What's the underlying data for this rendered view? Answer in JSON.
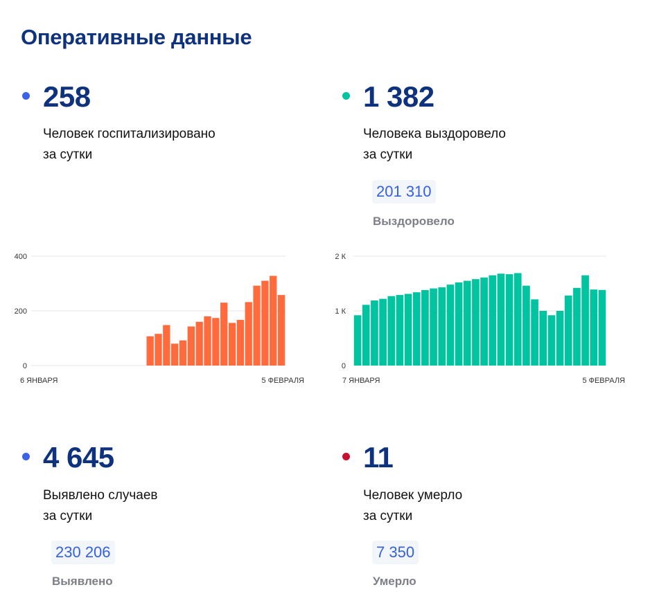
{
  "page": {
    "title": "Оперативные данные"
  },
  "stats": {
    "hospitalized": {
      "value": "258",
      "label_line1": "Человек госпитализировано",
      "label_line2": "за сутки",
      "dot_color": "#3a63e8"
    },
    "recovered": {
      "value": "1 382",
      "label_line1": "Человека выздоровело",
      "label_line2": "за сутки",
      "total_value": "201 310",
      "total_label": "Выздоровело",
      "dot_color": "#00c4a0"
    },
    "cases": {
      "value": "4 645",
      "label_line1": "Выявлено случаев",
      "label_line2": "за сутки",
      "total_value": "230 206",
      "total_label": "Выявлено",
      "dot_color": "#3a63e8"
    },
    "deaths": {
      "value": "11",
      "label_line1": "Человек умерло",
      "label_line2": "за сутки",
      "total_value": "7 350",
      "total_label": "Умерло",
      "dot_color": "#c8102e"
    }
  },
  "chart_data": [
    {
      "type": "bar",
      "color": "#ff6b3d",
      "grid": true,
      "ylim": [
        0,
        400
      ],
      "y_ticks": [
        0,
        200,
        400
      ],
      "y_tick_labels": [
        "0",
        "200",
        "400"
      ],
      "x_start_label": "6 ЯНВАРЯ",
      "x_end_label": "5 ФЕВРАЛЯ",
      "values": [
        null,
        null,
        null,
        null,
        null,
        null,
        null,
        null,
        null,
        null,
        null,
        null,
        null,
        null,
        107,
        116,
        148,
        80,
        92,
        143,
        160,
        180,
        174,
        230,
        156,
        167,
        232,
        292,
        310,
        328,
        258
      ]
    },
    {
      "type": "bar",
      "color": "#00c4a0",
      "grid": true,
      "ylim": [
        0,
        2000
      ],
      "y_ticks": [
        0,
        1000,
        2000
      ],
      "y_tick_labels": [
        "0",
        "1 К",
        "2 К"
      ],
      "x_start_label": "7 ЯНВАРЯ",
      "x_end_label": "5 ФЕВРАЛЯ",
      "values": [
        920,
        1110,
        1190,
        1220,
        1270,
        1290,
        1310,
        1340,
        1380,
        1410,
        1430,
        1480,
        1520,
        1550,
        1580,
        1610,
        1650,
        1680,
        1670,
        1690,
        1460,
        1210,
        1000,
        920,
        1000,
        1280,
        1420,
        1650,
        1390,
        1382
      ]
    }
  ]
}
